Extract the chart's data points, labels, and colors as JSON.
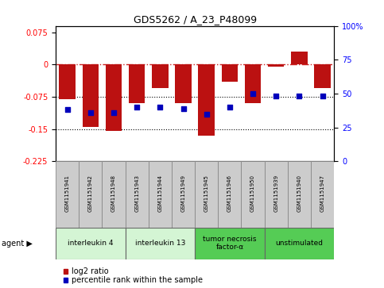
{
  "title": "GDS5262 / A_23_P48099",
  "samples": [
    "GSM1151941",
    "GSM1151942",
    "GSM1151948",
    "GSM1151943",
    "GSM1151944",
    "GSM1151949",
    "GSM1151945",
    "GSM1151946",
    "GSM1151950",
    "GSM1151939",
    "GSM1151940",
    "GSM1151947"
  ],
  "log2_ratio": [
    -0.08,
    -0.145,
    -0.155,
    -0.09,
    -0.055,
    -0.09,
    -0.165,
    -0.04,
    -0.09,
    -0.005,
    0.03,
    -0.055
  ],
  "percentile": [
    38,
    36,
    36,
    40,
    40,
    39,
    35,
    40,
    50,
    48,
    48,
    48
  ],
  "agents": [
    {
      "label": "interleukin 4",
      "samples": [
        0,
        1,
        2
      ],
      "color": "#d4f5d4"
    },
    {
      "label": "interleukin 13",
      "samples": [
        3,
        4,
        5
      ],
      "color": "#d4f5d4"
    },
    {
      "label": "tumor necrosis\nfactor-α",
      "samples": [
        6,
        7,
        8
      ],
      "color": "#55cc55"
    },
    {
      "label": "unstimulated",
      "samples": [
        9,
        10,
        11
      ],
      "color": "#55cc55"
    }
  ],
  "ylim_left": [
    -0.225,
    0.09
  ],
  "ylim_right": [
    0,
    100
  ],
  "yticks_left": [
    0.075,
    0.0,
    -0.075,
    -0.15,
    -0.225
  ],
  "yticks_right": [
    100,
    75,
    50,
    25,
    0
  ],
  "bar_color": "#bb1111",
  "dot_color": "#0000bb",
  "dotted_lines": [
    -0.075,
    -0.15
  ],
  "bar_width": 0.7,
  "legend_items": [
    {
      "color": "#bb1111",
      "label": "log2 ratio"
    },
    {
      "color": "#0000bb",
      "label": "percentile rank within the sample"
    }
  ]
}
